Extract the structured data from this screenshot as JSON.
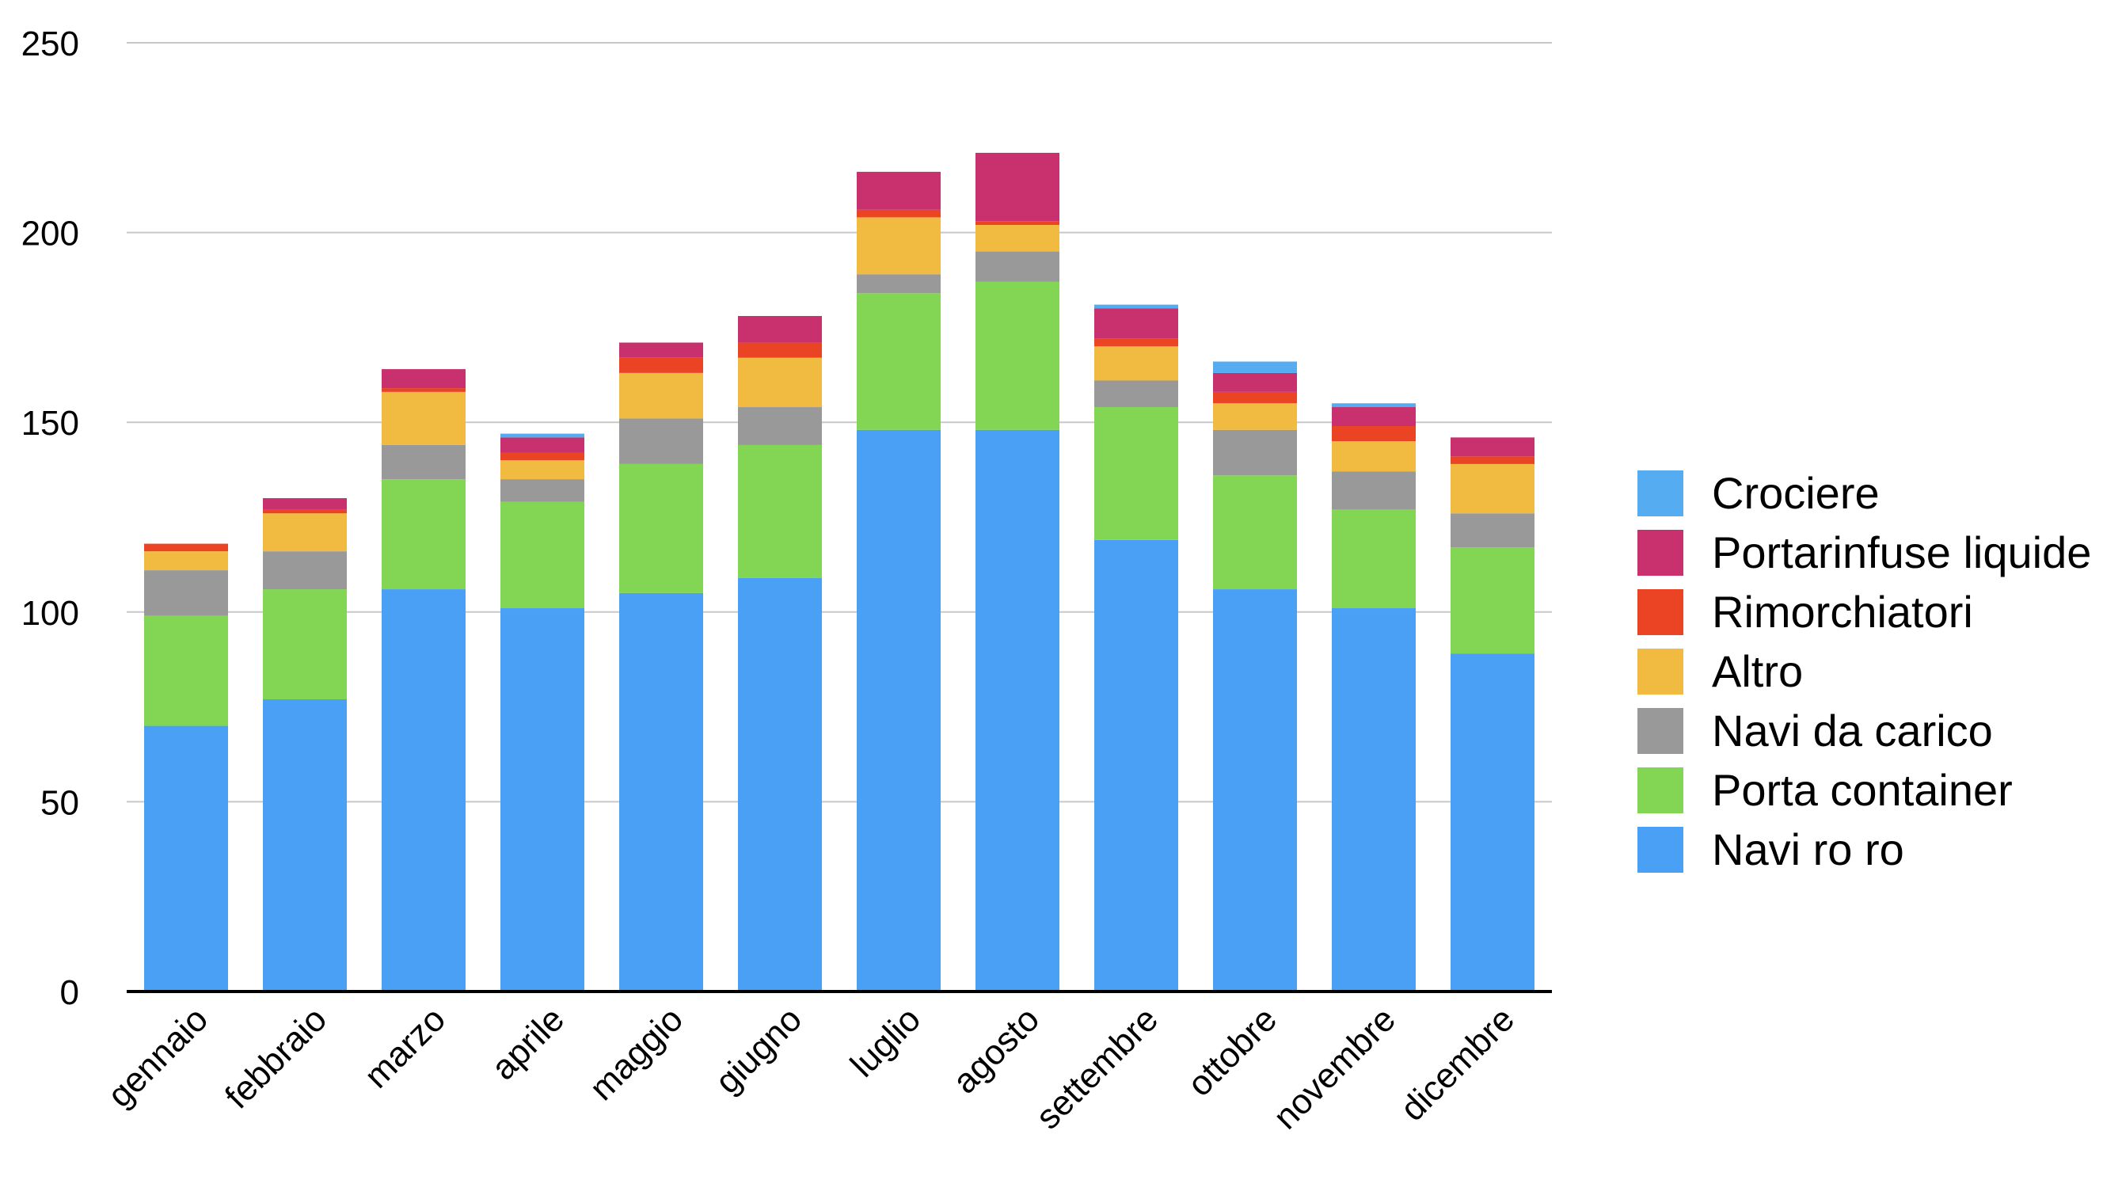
{
  "chart_data": {
    "type": "bar",
    "stacked": true,
    "title": "",
    "xlabel": "",
    "ylabel": "",
    "ylim": [
      0,
      250
    ],
    "yticks": [
      "0",
      "50",
      "100",
      "150",
      "200",
      "250"
    ],
    "grid": true,
    "legend_position": "right",
    "categories": [
      "gennaio",
      "febbraio",
      "marzo",
      "aprile",
      "maggio",
      "giugno",
      "luglio",
      "agosto",
      "settembre",
      "ottobre",
      "novembre",
      "dicembre"
    ],
    "series": [
      {
        "name": "Navi ro ro",
        "color": "#4aa0f5",
        "values": [
          70,
          77,
          106,
          101,
          105,
          109,
          148,
          148,
          119,
          106,
          101,
          89
        ]
      },
      {
        "name": "Porta container",
        "color": "#82d654",
        "values": [
          29,
          29,
          29,
          28,
          34,
          35,
          36,
          39,
          35,
          30,
          26,
          28
        ]
      },
      {
        "name": "Navi da carico",
        "color": "#999999",
        "values": [
          12,
          10,
          9,
          6,
          12,
          10,
          5,
          8,
          7,
          12,
          10,
          9
        ]
      },
      {
        "name": "Altro",
        "color": "#f0bb40",
        "values": [
          5,
          10,
          14,
          5,
          12,
          13,
          15,
          7,
          9,
          7,
          8,
          13
        ]
      },
      {
        "name": "Rimorchiatori",
        "color": "#eb4424",
        "values": [
          2,
          1,
          1,
          2,
          4,
          4,
          2,
          1,
          2,
          3,
          4,
          2
        ]
      },
      {
        "name": "Portarinfuse liquide",
        "color": "#c8306e",
        "values": [
          0,
          3,
          5,
          4,
          4,
          7,
          10,
          18,
          8,
          5,
          5,
          5
        ]
      },
      {
        "name": "Crociere",
        "color": "#55acf0",
        "values": [
          0,
          0,
          0,
          1,
          0,
          0,
          0,
          0,
          1,
          3,
          1,
          0
        ]
      }
    ]
  }
}
